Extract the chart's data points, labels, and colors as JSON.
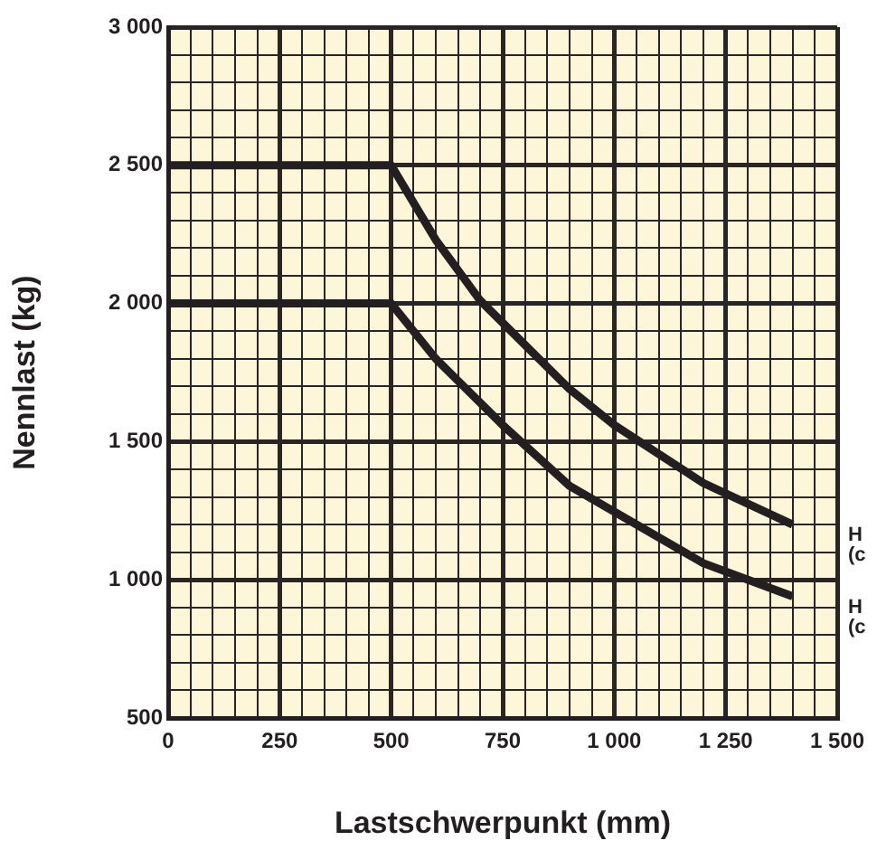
{
  "chart_data": {
    "type": "line",
    "xlabel": "Lastschwerpunkt (mm)",
    "ylabel": "Nennlast (kg)",
    "xlim": [
      0,
      1500
    ],
    "ylim": [
      500,
      3000
    ],
    "xticks": [
      0,
      {
        "value": 50,
        "label": null
      },
      {
        "value": 100,
        "label": null
      },
      {
        "value": 150,
        "label": null
      },
      {
        "value": 200,
        "label": null
      },
      250,
      {
        "value": 300,
        "label": null
      },
      {
        "value": 350,
        "label": null
      },
      {
        "value": 400,
        "label": null
      },
      {
        "value": 450,
        "label": null
      },
      500,
      {
        "value": 550,
        "label": null
      },
      {
        "value": 600,
        "label": null
      },
      {
        "value": 650,
        "label": null
      },
      {
        "value": 700,
        "label": null
      },
      750,
      {
        "value": 800,
        "label": null
      },
      {
        "value": 850,
        "label": null
      },
      {
        "value": 900,
        "label": null
      },
      {
        "value": 950,
        "label": null
      },
      {
        "value": 1000,
        "label": "1 000"
      },
      {
        "value": 1050,
        "label": null
      },
      {
        "value": 1100,
        "label": null
      },
      {
        "value": 1150,
        "label": null
      },
      {
        "value": 1200,
        "label": null
      },
      {
        "value": 1250,
        "label": "1 250"
      },
      {
        "value": 1300,
        "label": null
      },
      {
        "value": 1350,
        "label": null
      },
      {
        "value": 1400,
        "label": null
      },
      {
        "value": 1450,
        "label": null
      },
      {
        "value": 1500,
        "label": "1 500"
      }
    ],
    "yticks": [
      500,
      {
        "value": 600,
        "label": null
      },
      {
        "value": 700,
        "label": null
      },
      {
        "value": 800,
        "label": null
      },
      {
        "value": 900,
        "label": null
      },
      {
        "value": 1000,
        "label": "1 000"
      },
      {
        "value": 1100,
        "label": null
      },
      {
        "value": 1200,
        "label": null
      },
      {
        "value": 1300,
        "label": null
      },
      {
        "value": 1400,
        "label": null
      },
      {
        "value": 1500,
        "label": "1 500"
      },
      {
        "value": 1600,
        "label": null
      },
      {
        "value": 1700,
        "label": null
      },
      {
        "value": 1800,
        "label": null
      },
      {
        "value": 1900,
        "label": null
      },
      {
        "value": 2000,
        "label": "2 000"
      },
      {
        "value": 2100,
        "label": null
      },
      {
        "value": 2200,
        "label": null
      },
      {
        "value": 2300,
        "label": null
      },
      {
        "value": 2400,
        "label": null
      },
      {
        "value": 2500,
        "label": "2 500"
      },
      {
        "value": 2600,
        "label": null
      },
      {
        "value": 2700,
        "label": null
      },
      {
        "value": 2800,
        "label": null
      },
      {
        "value": 2900,
        "label": null
      },
      {
        "value": 3000,
        "label": "3 000"
      }
    ],
    "grid": true,
    "marker": "none",
    "line_style": "solid",
    "series": [
      {
        "name": "H (c",
        "color": "#231f20",
        "x": [
          0,
          500,
          600,
          700,
          900,
          1000,
          1200,
          1400
        ],
        "values": [
          2500,
          2500,
          2230,
          2010,
          1690,
          1560,
          1350,
          1200
        ]
      },
      {
        "name": "H (c",
        "color": "#231f20",
        "x": [
          0,
          500,
          600,
          750,
          900,
          1200,
          1400
        ],
        "values": [
          2000,
          2000,
          1800,
          1560,
          1340,
          1060,
          940
        ]
      }
    ]
  }
}
